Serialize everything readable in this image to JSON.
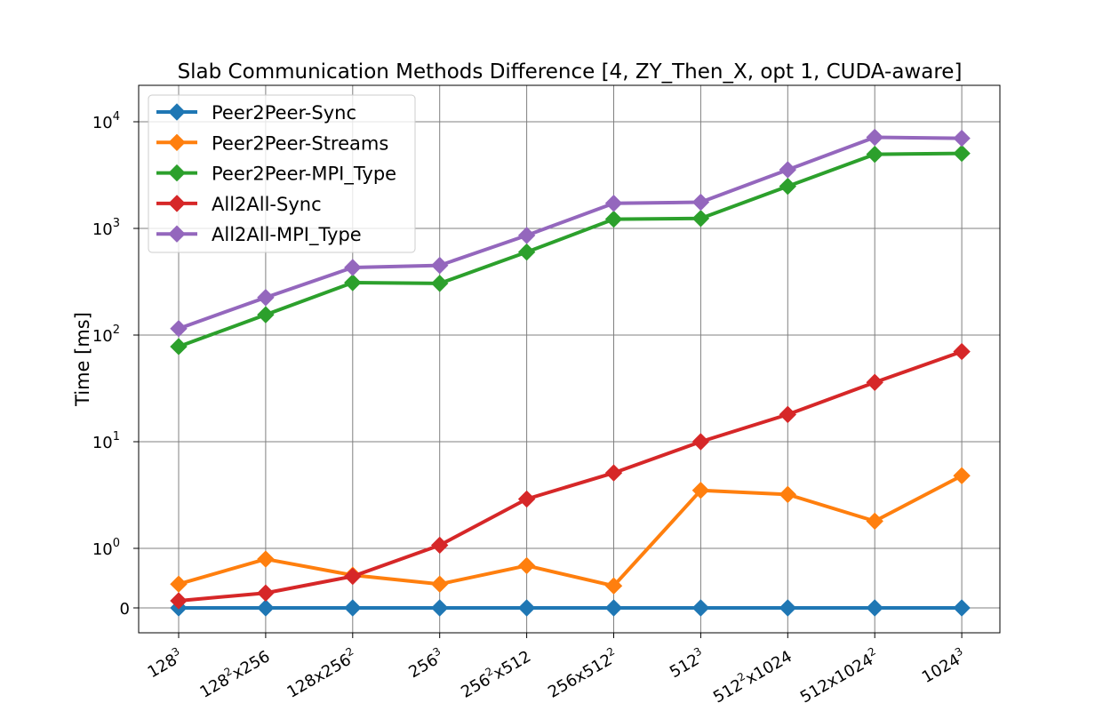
{
  "chart_data": {
    "type": "line",
    "title": "Slab Communication Methods Difference [4, ZY_Then_X, opt 1, CUDA-aware]",
    "xlabel": "",
    "ylabel": "Time [ms]",
    "yscale": "symlog",
    "categories": [
      {
        "base": "128",
        "sup": "3",
        "rest": "",
        "sup2": ""
      },
      {
        "base": "128",
        "sup": "2",
        "rest": "x256",
        "sup2": ""
      },
      {
        "base": "128x256",
        "sup": "2",
        "rest": "",
        "sup2": ""
      },
      {
        "base": "256",
        "sup": "3",
        "rest": "",
        "sup2": ""
      },
      {
        "base": "256",
        "sup": "2",
        "rest": "x512",
        "sup2": ""
      },
      {
        "base": "256x512",
        "sup": "2",
        "rest": "",
        "sup2": ""
      },
      {
        "base": "512",
        "sup": "3",
        "rest": "",
        "sup2": ""
      },
      {
        "base": "512",
        "sup": "2",
        "rest": "x1024",
        "sup2": ""
      },
      {
        "base": "512x1024",
        "sup": "2",
        "rest": "",
        "sup2": ""
      },
      {
        "base": "1024",
        "sup": "3",
        "rest": "",
        "sup2": ""
      }
    ],
    "yticks": [
      {
        "value": 0,
        "base": "0",
        "exp": ""
      },
      {
        "value": 1,
        "base": "10",
        "exp": "0"
      },
      {
        "value": 10,
        "base": "10",
        "exp": "1"
      },
      {
        "value": 100,
        "base": "10",
        "exp": "2"
      },
      {
        "value": 1000,
        "base": "10",
        "exp": "3"
      },
      {
        "value": 10000,
        "base": "10",
        "exp": "4"
      }
    ],
    "grid": true,
    "legend_position": "top-left",
    "series": [
      {
        "name": "Peer2Peer-Sync",
        "color": "#1f77b4",
        "values": [
          0.0,
          0.0,
          0.0,
          0.0,
          0.0,
          0.0,
          0.0,
          0.0,
          0.0,
          0.0
        ]
      },
      {
        "name": "Peer2Peer-Streams",
        "color": "#ff7f0e",
        "values": [
          0.4,
          0.82,
          0.55,
          0.4,
          0.71,
          0.37,
          3.5,
          3.2,
          1.8,
          4.8
        ]
      },
      {
        "name": "Peer2Peer-MPI_Type",
        "color": "#2ca02c",
        "values": [
          78,
          155,
          310,
          305,
          600,
          1220,
          1240,
          2480,
          4950,
          5050
        ]
      },
      {
        "name": "All2All-Sync",
        "color": "#d62728",
        "values": [
          0.12,
          0.25,
          0.53,
          1.07,
          2.9,
          5.1,
          10,
          18,
          36,
          70
        ]
      },
      {
        "name": "All2All-MPI_Type",
        "color": "#9467bd",
        "values": [
          115,
          225,
          430,
          450,
          860,
          1720,
          1760,
          3550,
          7150,
          7000
        ]
      }
    ]
  }
}
